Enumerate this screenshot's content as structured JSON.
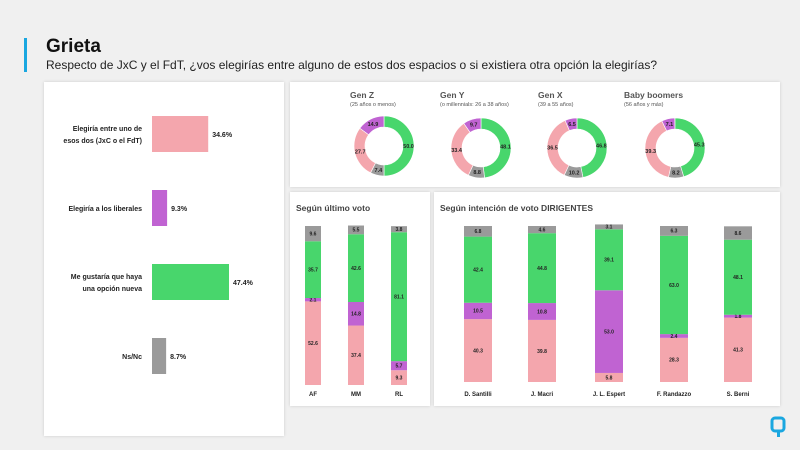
{
  "title": "Grieta",
  "subtitle": "Respecto  de JxC y el FdT, ¿vos elegirías entre alguno de estos dos espacios o si existiera otra opción la elegirías?",
  "colors": {
    "pink": "#f4a6ad",
    "green": "#48d66c",
    "purple": "#c063d2",
    "gray": "#9a9a9a",
    "accent": "#1aa7e0"
  },
  "chart_data": [
    {
      "type": "bar",
      "orientation": "horizontal",
      "categories": [
        [
          "Elegiría entre uno de",
          "esos dos (JxC o el FdT)"
        ],
        [
          "Elegiría a los liberales"
        ],
        [
          "Me gustaría que haya",
          "una opción nueva"
        ],
        [
          "Ns/Nc"
        ]
      ],
      "values": [
        34.6,
        9.3,
        47.4,
        8.7
      ],
      "labels": [
        "34.6%",
        "9.3%",
        "47.4%",
        "8.7%"
      ],
      "colors": [
        "pink",
        "purple",
        "green",
        "gray"
      ]
    },
    {
      "type": "pie",
      "variant": "donut",
      "groups": [
        {
          "name": "Gen Z",
          "sub": "(25 años o menos)",
          "values": {
            "green": 50.0,
            "gray": 7.4,
            "pink": 27.7,
            "purple": 14.9
          },
          "labels": {
            "green": "50.0",
            "gray": "7.4",
            "pink": "27.7",
            "purple": "14.9"
          }
        },
        {
          "name": "Gen Y",
          "sub": "(o millennials: 26 a 38 años)",
          "values": {
            "green": 48.1,
            "gray": 8.8,
            "pink": 33.4,
            "purple": 9.7
          },
          "labels": {
            "green": "48.1",
            "gray": "8.8",
            "pink": "33.4",
            "purple": "9.7"
          }
        },
        {
          "name": "Gen X",
          "sub": "(39 a 55 años)",
          "values": {
            "green": 46.8,
            "gray": 10.2,
            "pink": 36.5,
            "purple": 6.5
          },
          "labels": {
            "green": "46.8",
            "gray": "10.2",
            "pink": "36.5",
            "purple": "6.5"
          }
        },
        {
          "name": "Baby boomers",
          "sub": "(56 años y más)",
          "values": {
            "green": 45.3,
            "gray": 8.2,
            "pink": 39.3,
            "purple": 7.1
          },
          "labels": {
            "green": "45.3",
            "gray": "8.2",
            "pink": "39.3",
            "purple": "7.1"
          }
        }
      ]
    },
    {
      "type": "bar",
      "stacked": true,
      "title": "Según último voto",
      "categories": [
        "AF",
        "MM",
        "RL"
      ],
      "series": [
        {
          "name": "pink",
          "values": [
            52.6,
            37.4,
            9.3
          ],
          "labels": [
            "52.6",
            "37.4",
            "9.3"
          ]
        },
        {
          "name": "purple",
          "values": [
            2.1,
            14.8,
            5.7
          ],
          "labels": [
            "2.1",
            "14.8",
            "5.7"
          ]
        },
        {
          "name": "green",
          "values": [
            35.7,
            42.6,
            81.1
          ],
          "labels": [
            "35.7",
            "42.6",
            "81.1"
          ]
        },
        {
          "name": "gray",
          "values": [
            9.6,
            5.5,
            3.8
          ],
          "labels": [
            "9.6",
            "5.5",
            "3.8"
          ]
        }
      ]
    },
    {
      "type": "bar",
      "stacked": true,
      "title": "Según intención de voto DIRIGENTES",
      "categories": [
        "D. Santilli",
        "J. Macri",
        "J. L. Espert",
        "F. Randazzo",
        "S. Berni"
      ],
      "series": [
        {
          "name": "pink",
          "values": [
            40.3,
            39.8,
            5.8,
            28.3,
            41.3
          ],
          "labels": [
            "40.3",
            "39.8",
            "5.8",
            "28.3",
            "41.3"
          ]
        },
        {
          "name": "purple",
          "values": [
            10.5,
            10.8,
            53.0,
            2.4,
            1.8
          ],
          "labels": [
            "10.5",
            "10.8",
            "53.0",
            "2.4",
            "1.8"
          ]
        },
        {
          "name": "green",
          "values": [
            42.4,
            44.8,
            39.1,
            63.0,
            48.1
          ],
          "labels": [
            "42.4",
            "44.8",
            "39.1",
            "63.0",
            "48.1"
          ]
        },
        {
          "name": "gray",
          "values": [
            6.8,
            4.6,
            3.1,
            6.3,
            8.6
          ],
          "labels": [
            "6.8",
            "4.6",
            "3.1",
            "6.3",
            "8.6"
          ]
        }
      ]
    }
  ]
}
